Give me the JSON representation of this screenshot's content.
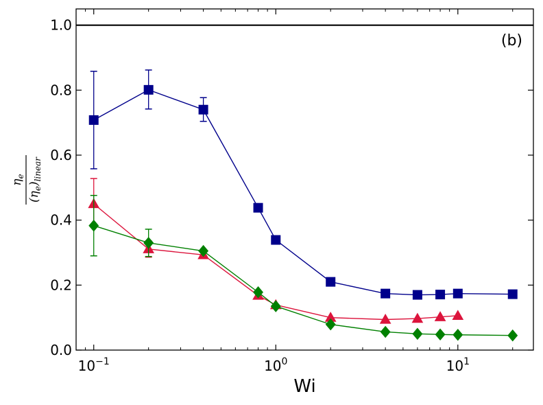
{
  "chart_data": {
    "type": "line",
    "panel_label": "(b)",
    "xlabel": "Wi",
    "ylabel": {
      "num_base": "η",
      "num_sub": "e",
      "den_open": "(η",
      "den_sub1": "e",
      "den_close": ")",
      "den_sub2": "linear"
    },
    "x_scale": "log",
    "xlim": [
      0.08,
      26
    ],
    "ylim": [
      0.0,
      1.05
    ],
    "y_ticks": [
      0.0,
      0.2,
      0.4,
      0.6,
      0.8,
      1.0
    ],
    "y_tick_labels": [
      "0.0",
      "0.2",
      "0.4",
      "0.6",
      "0.8",
      "1.0"
    ],
    "x_major_ticks": [
      0.1,
      1,
      10
    ],
    "x_tick_labels": [
      {
        "base": "10",
        "exp": "−1"
      },
      {
        "base": "10",
        "exp": "0"
      },
      {
        "base": "10",
        "exp": "1"
      }
    ],
    "reference_line": {
      "y": 1.0,
      "color": "#000000"
    },
    "grid": false,
    "series": [
      {
        "marker": "square",
        "color": "#00008b",
        "x": [
          0.1,
          0.2,
          0.4,
          0.8,
          1.0,
          2.0,
          4.0,
          6.0,
          8.0,
          10.0,
          20.0
        ],
        "y": [
          0.708,
          0.801,
          0.74,
          0.438,
          0.339,
          0.21,
          0.174,
          0.17,
          0.171,
          0.174,
          0.172
        ],
        "errors": [
          {
            "x": 0.1,
            "low": 0.558,
            "high": 0.858
          },
          {
            "x": 0.2,
            "low": 0.742,
            "high": 0.862
          },
          {
            "x": 0.4,
            "low": 0.704,
            "high": 0.777
          }
        ]
      },
      {
        "marker": "triangle",
        "color": "#dc143c",
        "x": [
          0.1,
          0.2,
          0.4,
          0.8,
          1.0,
          2.0,
          4.0,
          6.0,
          8.0,
          10.0
        ],
        "y": [
          0.45,
          0.311,
          0.293,
          0.168,
          0.139,
          0.1,
          0.094,
          0.097,
          0.102,
          0.106
        ],
        "errors": [
          {
            "x": 0.1,
            "low": 0.378,
            "high": 0.528
          },
          {
            "x": 0.2,
            "low": 0.286,
            "high": 0.336
          }
        ]
      },
      {
        "marker": "diamond",
        "color": "#008000",
        "x": [
          0.1,
          0.2,
          0.4,
          0.8,
          1.0,
          2.0,
          4.0,
          6.0,
          8.0,
          10.0,
          20.0
        ],
        "y": [
          0.383,
          0.33,
          0.305,
          0.178,
          0.135,
          0.079,
          0.056,
          0.05,
          0.048,
          0.047,
          0.045
        ],
        "errors": [
          {
            "x": 0.1,
            "low": 0.29,
            "high": 0.476
          },
          {
            "x": 0.2,
            "low": 0.288,
            "high": 0.372
          }
        ]
      }
    ]
  }
}
